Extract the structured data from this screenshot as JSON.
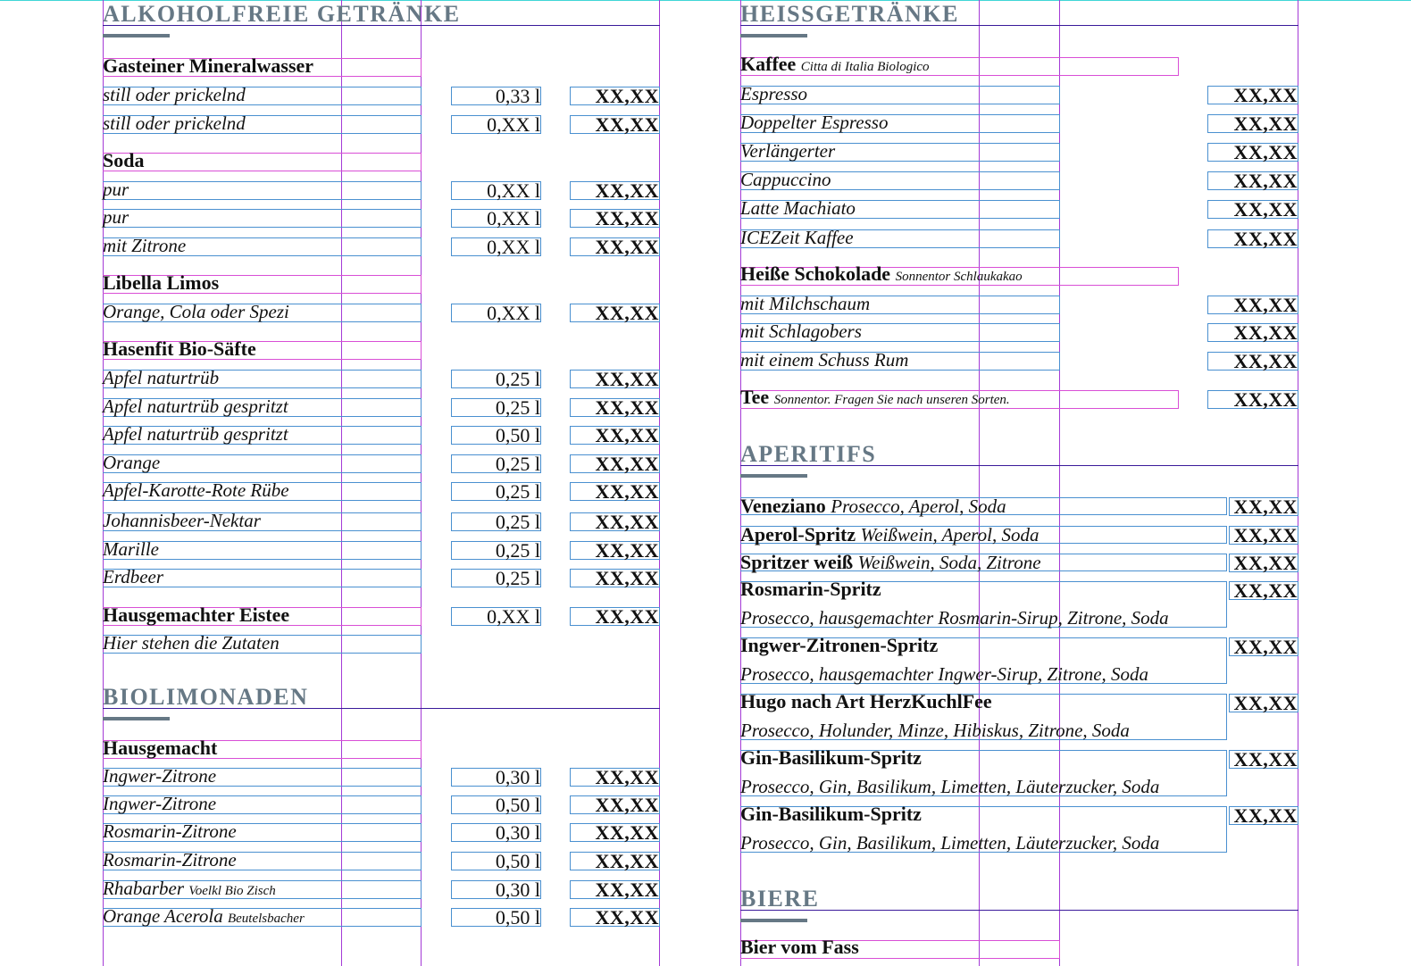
{
  "left": {
    "sections": [
      {
        "title": "ALKOHOLFREIE GETRÄNKE",
        "groups": [
          {
            "heading": "Gasteiner Mineralwasser",
            "items": [
              {
                "name": "still oder prickelnd",
                "volume": "0,33 l",
                "price": "XX,XX"
              },
              {
                "name": "still oder prickelnd",
                "volume": "0,XX l",
                "price": "XX,XX"
              }
            ]
          },
          {
            "heading": "Soda",
            "items": [
              {
                "name": "pur",
                "volume": "0,XX l",
                "price": "XX,XX"
              },
              {
                "name": "pur",
                "volume": "0,XX l",
                "price": "XX,XX"
              },
              {
                "name": "mit Zitrone",
                "volume": "0,XX l",
                "price": "XX,XX"
              }
            ]
          },
          {
            "heading": "Libella Limos",
            "items": [
              {
                "name": "Orange, Cola oder Spezi",
                "volume": "0,XX l",
                "price": "XX,XX"
              }
            ]
          },
          {
            "heading": "Hasenfit Bio-Säfte",
            "items": [
              {
                "name": "Apfel naturtrüb",
                "volume": "0,25 l",
                "price": "XX,XX"
              },
              {
                "name": "Apfel naturtrüb gespritzt",
                "volume": "0,25 l",
                "price": "XX,XX"
              },
              {
                "name": "Apfel naturtrüb gespritzt",
                "volume": "0,50 l",
                "price": "XX,XX"
              },
              {
                "name": "Orange",
                "volume": "0,25 l",
                "price": "XX,XX"
              },
              {
                "name": "Apfel-Karotte-Rote Rübe",
                "volume": "0,25 l",
                "price": "XX,XX"
              },
              {
                "name": "Johannisbeer-Nektar",
                "volume": "0,25 l",
                "price": "XX,XX"
              },
              {
                "name": "Marille",
                "volume": "0,25 l",
                "price": "XX,XX"
              },
              {
                "name": "Erdbeer",
                "volume": "0,25 l",
                "price": "XX,XX"
              }
            ]
          },
          {
            "heading": "Hausgemachter Eistee",
            "volume": "0,XX l",
            "price": "XX,XX",
            "items": [
              {
                "name": "Hier stehen die Zutaten"
              }
            ]
          }
        ]
      },
      {
        "title": "BIOLIMONADEN",
        "groups": [
          {
            "heading": "Hausgemacht",
            "items": [
              {
                "name": "Ingwer-Zitrone",
                "volume": "0,30 l",
                "price": "XX,XX"
              },
              {
                "name": "Ingwer-Zitrone",
                "volume": "0,50 l",
                "price": "XX,XX"
              },
              {
                "name": "Rosmarin-Zitrone",
                "volume": "0,30 l",
                "price": "XX,XX"
              },
              {
                "name": "Rosmarin-Zitrone",
                "volume": "0,50 l",
                "price": "XX,XX"
              },
              {
                "name": "Rhabarber",
                "note": "Voelkl Bio Zisch",
                "volume": "0,30 l",
                "price": "XX,XX"
              },
              {
                "name": "Orange Acerola",
                "note": "Beutelsbacher",
                "volume": "0,50 l",
                "price": "XX,XX"
              }
            ]
          }
        ]
      }
    ]
  },
  "right": {
    "sections": [
      {
        "title": "HEISSGETRÄNKE",
        "groups": [
          {
            "heading": "Kaffee",
            "note": "Citta di Italia Biologico",
            "items": [
              {
                "name": "Espresso",
                "price": "XX,XX"
              },
              {
                "name": "Doppelter Espresso",
                "price": "XX,XX"
              },
              {
                "name": "Verlängerter",
                "price": "XX,XX"
              },
              {
                "name": "Cappuccino",
                "price": "XX,XX"
              },
              {
                "name": "Latte Machiato",
                "price": "XX,XX"
              },
              {
                "name": "ICEZeit Kaffee",
                "price": "XX,XX"
              }
            ]
          },
          {
            "heading": "Heiße Schokolade",
            "note": "Sonnentor Schlaukakao",
            "items": [
              {
                "name": "mit Milchschaum",
                "price": "XX,XX"
              },
              {
                "name": "mit Schlagobers",
                "price": "XX,XX"
              },
              {
                "name": "mit einem Schuss Rum",
                "price": "XX,XX"
              }
            ]
          },
          {
            "heading": "Tee",
            "note": "Sonnentor. Fragen Sie nach unseren Sorten.",
            "price": "XX,XX",
            "items": []
          }
        ]
      },
      {
        "title": "APERITIFS",
        "drinks": [
          {
            "name": "Veneziano",
            "desc": "Prosecco, Aperol, Soda",
            "price": "XX,XX",
            "two_line": false
          },
          {
            "name": "Aperol-Spritz",
            "desc": "Weißwein, Aperol, Soda",
            "price": "XX,XX",
            "two_line": false
          },
          {
            "name": "Spritzer weiß",
            "desc": "Weißwein, Soda, Zitrone",
            "price": "XX,XX",
            "two_line": false
          },
          {
            "name": "Rosmarin-Spritz",
            "desc": "Prosecco, hausgemachter Rosmarin-Sirup, Zitrone, Soda",
            "price": "XX,XX",
            "two_line": true
          },
          {
            "name": "Ingwer-Zitronen-Spritz",
            "desc": "Prosecco, hausgemachter Ingwer-Sirup, Zitrone, Soda",
            "price": "XX,XX",
            "two_line": true
          },
          {
            "name": "Hugo nach Art HerzKuchlFee",
            "desc": "Prosecco, Holunder, Minze, Hibiskus, Zitrone, Soda",
            "price": "XX,XX",
            "two_line": true
          },
          {
            "name": "Gin-Basilikum-Spritz",
            "desc": "Prosecco, Gin, Basilikum, Limetten, Läuterzucker, Soda",
            "price": "XX,XX",
            "two_line": true
          },
          {
            "name": "Gin-Basilikum-Spritz",
            "desc": "Prosecco, Gin, Basilikum, Limetten, Läuterzucker, Soda",
            "price": "XX,XX",
            "two_line": true
          }
        ]
      },
      {
        "title": "BIERE",
        "groups": [
          {
            "heading": "Bier vom Fass",
            "items": []
          }
        ]
      }
    ]
  },
  "colors": {
    "section_title": "#667885",
    "frame_text": "#4a90d0",
    "frame_heading": "#d94fd6",
    "column_guide": "#a43ad6",
    "margin_guide": "#3fd6d6"
  }
}
